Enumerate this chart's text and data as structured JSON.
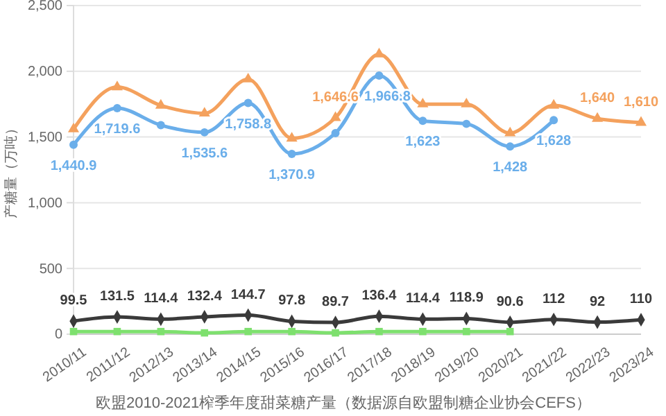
{
  "chart_data": {
    "type": "line",
    "title": "欧盟2010-2021榨季年度甜菜糖产量（数据源自欧盟制糖企业协会CEFS）",
    "ylabel": "产糖量（万吨）",
    "categories": [
      "2010/11",
      "2011/12",
      "2012/13",
      "2013/14",
      "2014/15",
      "2015/16",
      "2016/17",
      "2017/18",
      "2018/19",
      "2019/20",
      "2020/21",
      "2021/22",
      "2022/23",
      "2023/24"
    ],
    "ylim": [
      0,
      2500
    ],
    "yticks": [
      0,
      500,
      {
        "value": 1000,
        "label": "1,000"
      },
      {
        "value": 1500,
        "label": "1,500"
      },
      {
        "value": 2000,
        "label": "2,000"
      },
      {
        "value": 2500,
        "label": "2,500"
      }
    ],
    "grid": "y",
    "series": [
      {
        "color": "#f4a15d",
        "marker": "triangle",
        "values": [
          1560,
          1880,
          1740,
          1680,
          1940,
          1490,
          1646.6,
          2130,
          1750,
          1750,
          1530,
          1740,
          1640,
          1610
        ],
        "value_labels": [
          null,
          null,
          null,
          null,
          null,
          null,
          "1,646.6",
          null,
          null,
          null,
          null,
          null,
          "1,640",
          "1,610"
        ]
      },
      {
        "color": "#6aaeea",
        "marker": "circle",
        "values": [
          1440.9,
          1719.6,
          1590,
          1535.6,
          1758.8,
          1370.9,
          1530,
          1966.8,
          1623,
          1600,
          1428,
          1628,
          null,
          null
        ],
        "value_labels": [
          "1,440.9",
          "1,719.6",
          null,
          "1,535.6",
          "1,758.8",
          "1,370.9",
          null,
          "1,966.8",
          "1,623",
          null,
          "1,428",
          "1,628",
          null,
          null
        ]
      },
      {
        "color": "#3a3a3a",
        "marker": "diamond",
        "values": [
          99.5,
          131.5,
          114.4,
          132.4,
          144.7,
          97.8,
          89.7,
          136.4,
          114.4,
          118.9,
          90.6,
          112,
          92,
          110
        ],
        "value_labels": [
          "99.5",
          "131.5",
          "114.4",
          "132.4",
          "144.7",
          "97.8",
          "89.7",
          "136.4",
          "114.4",
          "118.9",
          "90.6",
          "112",
          "92",
          "110"
        ]
      },
      {
        "color": "#7ee06e",
        "marker": "square",
        "values": [
          20,
          20,
          20,
          10,
          20,
          20,
          10,
          20,
          20,
          20,
          20,
          null,
          null,
          null
        ]
      }
    ]
  }
}
